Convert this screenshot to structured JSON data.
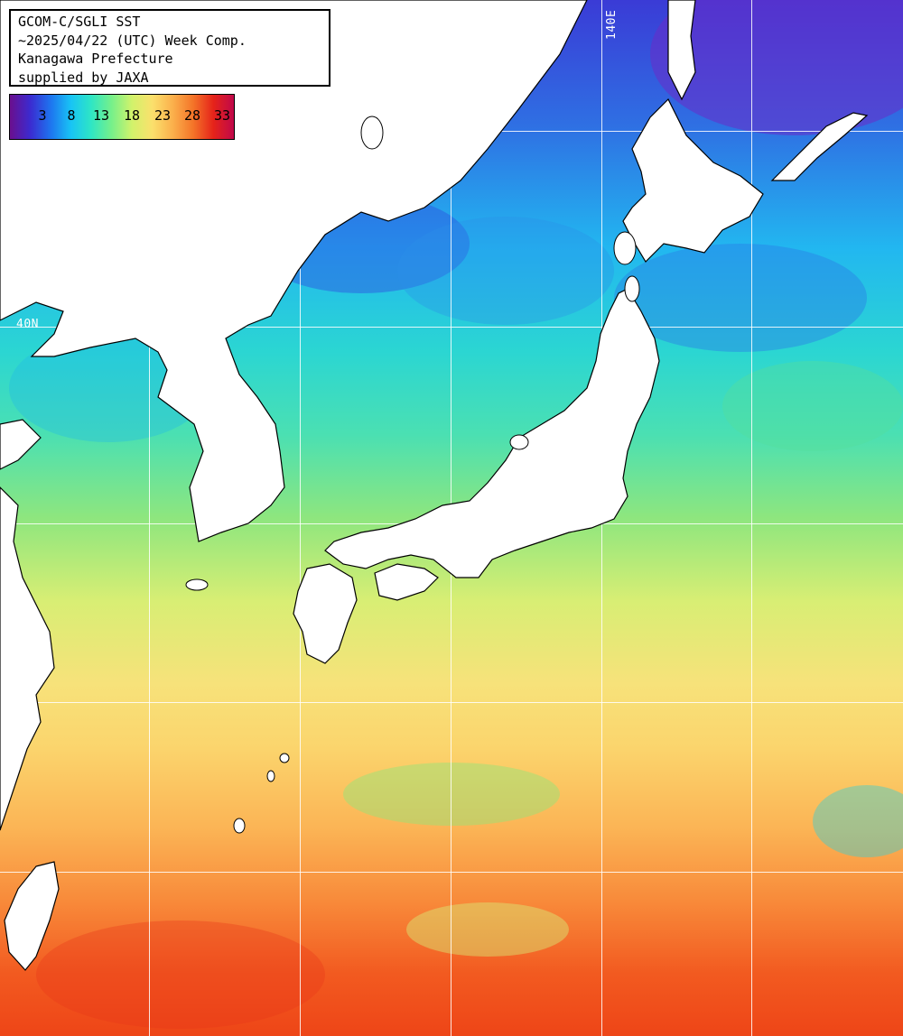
{
  "map": {
    "info": {
      "line1": "GCOM-C/SGLI SST",
      "line2": "~2025/04/22 (UTC) Week Comp.",
      "line3": "Kanagawa Prefecture",
      "line4": "supplied by JAXA"
    },
    "colorbar": {
      "ticks": [
        "3",
        "8",
        "13",
        "18",
        "23",
        "28",
        "33"
      ],
      "colors": [
        "#6a0f8e",
        "#3b2bd0",
        "#1e74ef",
        "#18c4f5",
        "#2fe6c4",
        "#77f08a",
        "#d2f26b",
        "#fbe06c",
        "#fbb04c",
        "#f47428",
        "#e5231a",
        "#c0084a"
      ]
    },
    "grid": {
      "longitude_label": "140E",
      "latitude_label": "40N"
    },
    "land_color": "#ffffff",
    "grid_color": "#ffffff"
  }
}
